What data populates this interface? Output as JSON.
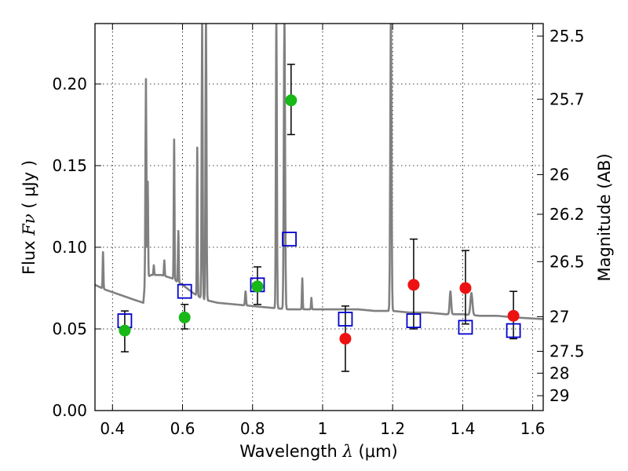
{
  "chart_data": {
    "type": "scatter",
    "xlabel": "Wavelength",
    "xlabel_symbol": "λ",
    "xlabel_unit": "(μm)",
    "ylabel": "Flux",
    "ylabel_symbol": "Fν",
    "ylabel_unit": "( μJy )",
    "y2label": "Magnitude (AB)",
    "xlim": [
      0.35,
      1.63
    ],
    "ylim": [
      0.0,
      0.237
    ],
    "grid": true,
    "x_ticks": [
      0.4,
      0.6,
      0.8,
      1.0,
      1.2,
      1.4,
      1.6
    ],
    "x_tick_labels": [
      "0.4",
      "0.6",
      "0.8",
      "1",
      "1.2",
      "1.4",
      "1.6"
    ],
    "y_ticks": [
      0.0,
      0.05,
      0.1,
      0.15,
      0.2
    ],
    "y_tick_labels": [
      "0.00",
      "0.05",
      "0.10",
      "0.15",
      "0.20"
    ],
    "y2_ticks": [
      {
        "label": "25.5",
        "flux": 0.2293
      },
      {
        "label": "25.7",
        "flux": 0.1907
      },
      {
        "label": "26",
        "flux": 0.1445
      },
      {
        "label": "26.2",
        "flux": 0.1202
      },
      {
        "label": "26.5",
        "flux": 0.0912
      },
      {
        "label": "27",
        "flux": 0.0575
      },
      {
        "label": "27.5",
        "flux": 0.0363
      },
      {
        "label": "28",
        "flux": 0.0229
      },
      {
        "label": "29",
        "flux": 0.0091
      }
    ],
    "colors": {
      "green": "#17b817",
      "red": "#ee1111",
      "blue": "#0000cc",
      "spectrum": "#808080"
    },
    "green_points": [
      {
        "x": 0.435,
        "y": 0.049,
        "err_lo": 0.013,
        "err_hi": 0.012
      },
      {
        "x": 0.606,
        "y": 0.057,
        "err_lo": 0.007,
        "err_hi": 0.008
      },
      {
        "x": 0.814,
        "y": 0.076,
        "err_lo": 0.011,
        "err_hi": 0.012
      },
      {
        "x": 0.91,
        "y": 0.19,
        "err_lo": 0.021,
        "err_hi": 0.022
      }
    ],
    "red_points": [
      {
        "x": 1.065,
        "y": 0.044,
        "err_lo": 0.02,
        "err_hi": 0.02
      },
      {
        "x": 1.26,
        "y": 0.077,
        "err_lo": 0.027,
        "err_hi": 0.028
      },
      {
        "x": 1.408,
        "y": 0.075,
        "err_lo": 0.022,
        "err_hi": 0.023
      },
      {
        "x": 1.545,
        "y": 0.058,
        "err_lo": 0.014,
        "err_hi": 0.015
      }
    ],
    "blue_squares": [
      {
        "x": 0.435,
        "y": 0.055
      },
      {
        "x": 0.606,
        "y": 0.073
      },
      {
        "x": 0.814,
        "y": 0.077
      },
      {
        "x": 0.905,
        "y": 0.105
      },
      {
        "x": 1.065,
        "y": 0.056
      },
      {
        "x": 1.26,
        "y": 0.055
      },
      {
        "x": 1.408,
        "y": 0.051
      },
      {
        "x": 1.545,
        "y": 0.049
      }
    ],
    "spectrum_continuum": [
      [
        0.35,
        0.077
      ],
      [
        0.38,
        0.074
      ],
      [
        0.42,
        0.071
      ],
      [
        0.46,
        0.068
      ],
      [
        0.488,
        0.066
      ],
      [
        0.494,
        0.081
      ],
      [
        0.51,
        0.083
      ],
      [
        0.54,
        0.083
      ],
      [
        0.57,
        0.081
      ],
      [
        0.6,
        0.077
      ],
      [
        0.63,
        0.072
      ],
      [
        0.66,
        0.068
      ],
      [
        0.7,
        0.066
      ],
      [
        0.75,
        0.065
      ],
      [
        0.8,
        0.064
      ],
      [
        0.85,
        0.063
      ],
      [
        0.9,
        0.062
      ],
      [
        0.95,
        0.062
      ],
      [
        1.0,
        0.062
      ],
      [
        1.05,
        0.062
      ],
      [
        1.1,
        0.062
      ],
      [
        1.15,
        0.061
      ],
      [
        1.2,
        0.061
      ],
      [
        1.25,
        0.06
      ],
      [
        1.3,
        0.06
      ],
      [
        1.35,
        0.059
      ],
      [
        1.4,
        0.059
      ],
      [
        1.45,
        0.058
      ],
      [
        1.5,
        0.058
      ],
      [
        1.55,
        0.057
      ],
      [
        1.63,
        0.056
      ]
    ],
    "spectrum_lines": [
      {
        "x": 0.373,
        "peak": 0.097,
        "width": 0.003
      },
      {
        "x": 0.4955,
        "peak": 0.203,
        "width": 0.004
      },
      {
        "x": 0.5007,
        "peak": 0.14,
        "width": 0.003
      },
      {
        "x": 0.518,
        "peak": 0.089,
        "width": 0.003
      },
      {
        "x": 0.548,
        "peak": 0.092,
        "width": 0.003
      },
      {
        "x": 0.576,
        "peak": 0.166,
        "width": 0.003
      },
      {
        "x": 0.588,
        "peak": 0.11,
        "width": 0.003
      },
      {
        "x": 0.642,
        "peak": 0.161,
        "width": 0.003
      },
      {
        "x": 0.656,
        "peak": 0.24,
        "width": 0.004
      },
      {
        "x": 0.667,
        "peak": 0.24,
        "width": 0.004
      },
      {
        "x": 0.78,
        "peak": 0.073,
        "width": 0.004
      },
      {
        "x": 0.868,
        "peak": 0.24,
        "width": 0.004
      },
      {
        "x": 0.891,
        "peak": 0.24,
        "width": 0.005
      },
      {
        "x": 0.942,
        "peak": 0.081,
        "width": 0.003
      },
      {
        "x": 0.968,
        "peak": 0.069,
        "width": 0.003
      },
      {
        "x": 1.195,
        "peak": 0.24,
        "width": 0.005
      },
      {
        "x": 1.365,
        "peak": 0.073,
        "width": 0.006
      },
      {
        "x": 1.425,
        "peak": 0.072,
        "width": 0.008
      }
    ]
  }
}
